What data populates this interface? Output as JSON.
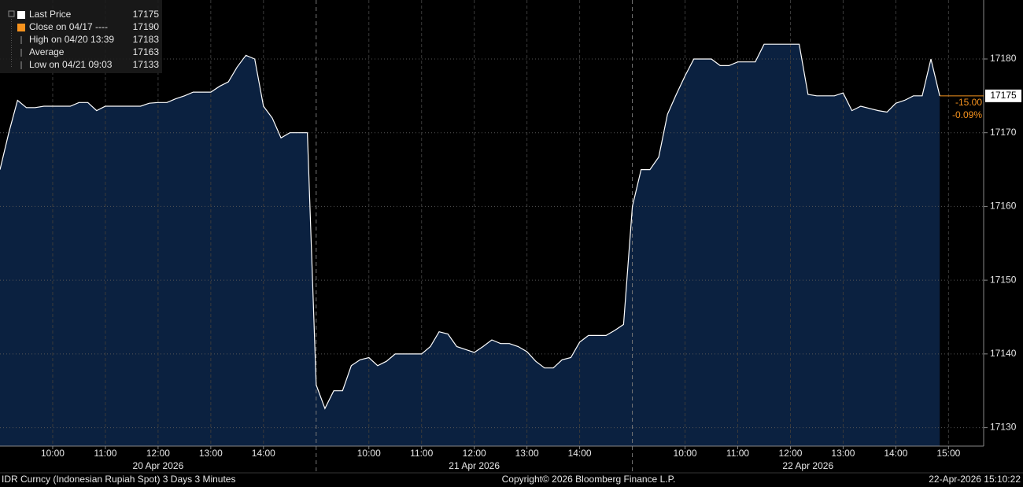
{
  "chart_data": {
    "type": "area",
    "series": [
      {
        "name": "Last Price",
        "color": "#ffffff",
        "fill": "#0b2140"
      }
    ],
    "days": [
      {
        "label": "20 Apr 2026",
        "categories": [
          null,
          null,
          null,
          null,
          null,
          null,
          "10:00",
          null,
          null,
          null,
          null,
          null,
          "11:00",
          null,
          null,
          null,
          null,
          null,
          "12:00",
          null,
          null,
          null,
          null,
          null,
          "13:00",
          null,
          null,
          null,
          null,
          null,
          "14:00",
          null,
          null,
          null,
          null,
          null
        ],
        "values": [
          17165,
          17170,
          17174.4,
          17173.4,
          17173.4,
          17173.6,
          17173.6,
          17173.6,
          17173.6,
          17174.1,
          17174.1,
          17173,
          17173.6,
          17173.6,
          17173.6,
          17173.6,
          17173.6,
          17174,
          17174.1,
          17174.1,
          17174.6,
          17175,
          17175.5,
          17175.5,
          17175.5,
          17176.3,
          17176.9,
          17178.9,
          17180.5,
          17180,
          17173.6,
          17172,
          17169.3,
          17170,
          17170,
          17170
        ]
      },
      {
        "label": "21 Apr 2026",
        "categories": [
          null,
          null,
          null,
          null,
          null,
          null,
          "10:00",
          null,
          null,
          null,
          null,
          null,
          "11:00",
          null,
          null,
          null,
          null,
          null,
          "12:00",
          null,
          null,
          null,
          null,
          null,
          "13:00",
          null,
          null,
          null,
          null,
          null,
          "14:00",
          null,
          null,
          null,
          null,
          null
        ],
        "values": [
          17135.8,
          17132.6,
          17135,
          17135,
          17138.4,
          17139.2,
          17139.5,
          17138.4,
          17139,
          17140,
          17140,
          17140,
          17140,
          17141,
          17143,
          17142.7,
          17141,
          17140.6,
          17140.2,
          17141,
          17141.9,
          17141.4,
          17141.4,
          17141,
          17140.3,
          17139,
          17138.1,
          17138.1,
          17139.2,
          17139.5,
          17141.6,
          17142.5,
          17142.5,
          17142.5,
          17143.2,
          17144
        ]
      },
      {
        "label": "22 Apr 2026",
        "categories": [
          null,
          null,
          null,
          null,
          null,
          null,
          "10:00",
          null,
          null,
          null,
          null,
          null,
          "11:00",
          null,
          null,
          null,
          null,
          null,
          "12:00",
          null,
          null,
          null,
          null,
          null,
          "13:00",
          null,
          null,
          null,
          null,
          null,
          "14:00",
          null,
          null,
          null,
          null,
          null,
          "15:00",
          null,
          null,
          null
        ],
        "values": [
          17160,
          17165,
          17165,
          17166.7,
          17172.5,
          17175.2,
          17177.7,
          17180,
          17180,
          17180,
          17179.1,
          17179.1,
          17179.6,
          17179.6,
          17179.6,
          17182,
          17182,
          17182,
          17182,
          17182,
          17175.2,
          17175,
          17175,
          17175,
          17175.4,
          17173,
          17173.6,
          17173.3,
          17173,
          17172.8,
          17174,
          17174.4,
          17175,
          17175,
          17180,
          17175,
          null,
          null,
          null,
          null
        ]
      }
    ],
    "ylim": [
      17127.5,
      17188
    ],
    "yticks": [
      17130,
      17140,
      17150,
      17160,
      17170,
      17180
    ],
    "grid": true,
    "legend": [
      {
        "label": "Last Price",
        "value": 17175,
        "color": "#ffffff"
      },
      {
        "label": "Close on 04/17 ----",
        "value": 17190,
        "color": "#f7931e"
      },
      {
        "label": "High on 04/20 13:39",
        "value": 17183
      },
      {
        "label": "Average",
        "value": 17163
      },
      {
        "label": "Low on 04/21 09:03",
        "value": 17133
      }
    ],
    "last_price": 17175,
    "change_label": "-15.00",
    "change_pct_label": "-0.09%",
    "change_color": "#f7931e",
    "footer": {
      "left": "IDR Curncy (Indonesian Rupiah Spot) 3 Days 3 Minutes",
      "center": "Copyright© 2026 Bloomberg Finance L.P.",
      "right": "22-Apr-2026 15:10:22"
    }
  }
}
